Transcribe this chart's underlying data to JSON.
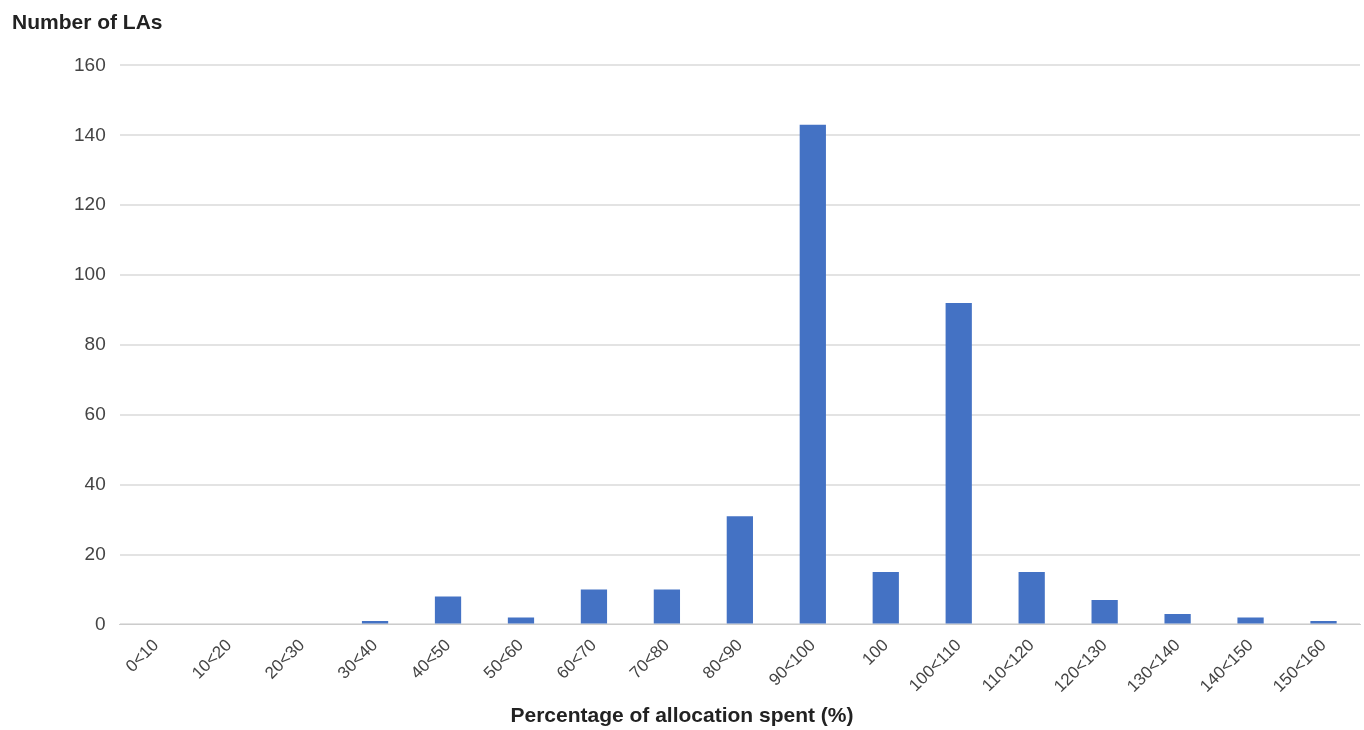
{
  "chart_data": {
    "type": "bar",
    "ylabel": "Number of LAs",
    "xlabel": "Percentage of allocation spent (%)",
    "categories": [
      "0<10",
      "10<20",
      "20<30",
      "30<40",
      "40<50",
      "50<60",
      "60<70",
      "70<80",
      "80<90",
      "90<100",
      "100",
      "100<110",
      "110<120",
      "120<130",
      "130<140",
      "140<150",
      "150<160"
    ],
    "values": [
      0,
      0,
      0,
      1,
      8,
      2,
      10,
      10,
      31,
      143,
      15,
      92,
      15,
      7,
      3,
      2,
      1
    ],
    "color": "#4472c4",
    "ylim": [
      0,
      160
    ],
    "yticks": [
      0,
      20,
      40,
      60,
      80,
      100,
      120,
      140,
      160
    ],
    "grid": "y",
    "legend": false
  }
}
